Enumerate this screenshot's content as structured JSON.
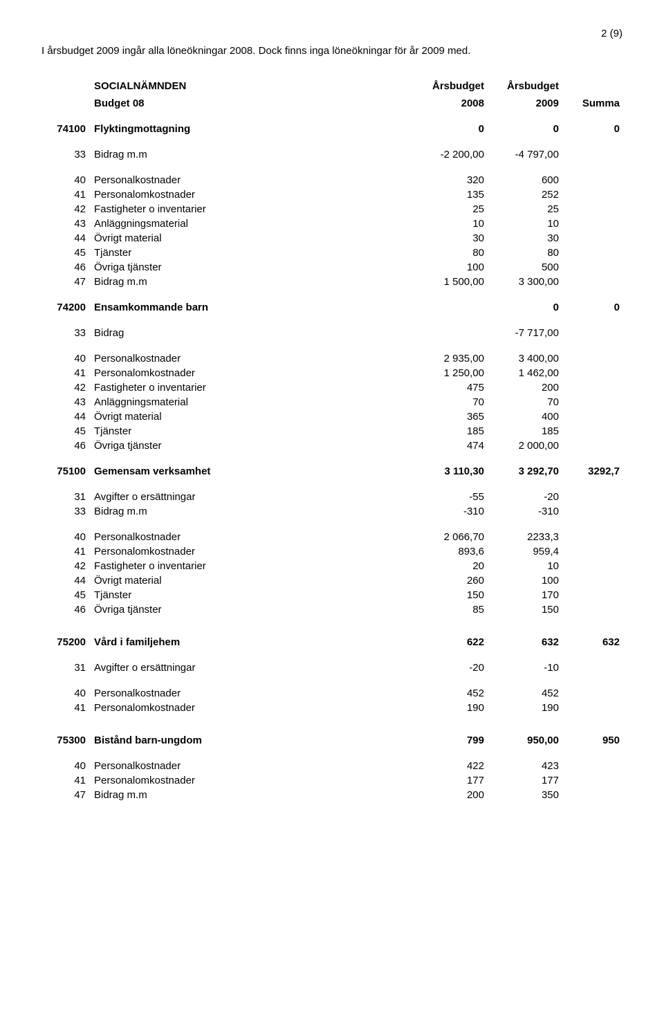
{
  "page_number": "2 (9)",
  "intro": "I årsbudget 2009 ingår alla löneökningar 2008. Dock finns inga löneökningar för år 2009 med.",
  "header": {
    "title": "SOCIALNÄMNDEN",
    "sub1": "Budget 08",
    "col1_top": "Årsbudget",
    "col1_bot": "2008",
    "col2_top": "Årsbudget",
    "col2_bot": "2009",
    "col3": "Summa"
  },
  "rows": [
    {
      "t": "section",
      "code": "74100",
      "label": "Flyktingmottagning",
      "v1": "0",
      "v2": "0",
      "v3": "0"
    },
    {
      "t": "spacer"
    },
    {
      "t": "line",
      "code": "33",
      "label": "Bidrag m.m",
      "v1": "-2 200,00",
      "v2": "-4 797,00"
    },
    {
      "t": "spacer"
    },
    {
      "t": "line",
      "code": "40",
      "label": "Personalkostnader",
      "v1": "320",
      "v2": "600"
    },
    {
      "t": "line",
      "code": "41",
      "label": "Personalomkostnader",
      "v1": "135",
      "v2": "252"
    },
    {
      "t": "line",
      "code": "42",
      "label": "Fastigheter o inventarier",
      "v1": "25",
      "v2": "25"
    },
    {
      "t": "line",
      "code": "43",
      "label": "Anläggningsmaterial",
      "v1": "10",
      "v2": "10"
    },
    {
      "t": "line",
      "code": "44",
      "label": "Övrigt material",
      "v1": "30",
      "v2": "30"
    },
    {
      "t": "line",
      "code": "45",
      "label": "Tjänster",
      "v1": "80",
      "v2": "80"
    },
    {
      "t": "line",
      "code": "46",
      "label": "Övriga tjänster",
      "v1": "100",
      "v2": "500"
    },
    {
      "t": "line",
      "code": "47",
      "label": "Bidrag m.m",
      "v1": "1 500,00",
      "v2": "3 300,00"
    },
    {
      "t": "spacer"
    },
    {
      "t": "section",
      "code": "74200",
      "label": "Ensamkommande barn",
      "v1": "",
      "v2": "0",
      "v3": "0"
    },
    {
      "t": "spacer"
    },
    {
      "t": "line",
      "code": "33",
      "label": "Bidrag",
      "v1": "",
      "v2": "-7 717,00"
    },
    {
      "t": "spacer"
    },
    {
      "t": "line",
      "code": "40",
      "label": "Personalkostnader",
      "v1": "2 935,00",
      "v2": "3 400,00"
    },
    {
      "t": "line",
      "code": "41",
      "label": "Personalomkostnader",
      "v1": "1 250,00",
      "v2": "1 462,00"
    },
    {
      "t": "line",
      "code": "42",
      "label": "Fastigheter o inventarier",
      "v1": "475",
      "v2": "200"
    },
    {
      "t": "line",
      "code": "43",
      "label": "Anläggningsmaterial",
      "v1": "70",
      "v2": "70"
    },
    {
      "t": "line",
      "code": "44",
      "label": "Övrigt material",
      "v1": "365",
      "v2": "400"
    },
    {
      "t": "line",
      "code": "45",
      "label": "Tjänster",
      "v1": "185",
      "v2": "185"
    },
    {
      "t": "line",
      "code": "46",
      "label": "Övriga tjänster",
      "v1": "474",
      "v2": "2 000,00"
    },
    {
      "t": "spacer"
    },
    {
      "t": "section",
      "code": "75100",
      "label": "Gemensam verksamhet",
      "v1": "3 110,30",
      "v2": "3 292,70",
      "v3": "3292,7"
    },
    {
      "t": "spacer"
    },
    {
      "t": "line",
      "code": "31",
      "label": "Avgifter o ersättningar",
      "v1": "-55",
      "v2": "-20"
    },
    {
      "t": "line",
      "code": "33",
      "label": "Bidrag m.m",
      "v1": "-310",
      "v2": "-310"
    },
    {
      "t": "spacer"
    },
    {
      "t": "line",
      "code": "40",
      "label": "Personalkostnader",
      "v1": "2 066,70",
      "v2": "2233,3"
    },
    {
      "t": "line",
      "code": "41",
      "label": "Personalomkostnader",
      "v1": "893,6",
      "v2": "959,4"
    },
    {
      "t": "line",
      "code": "42",
      "label": "Fastigheter o inventarier",
      "v1": "20",
      "v2": "10"
    },
    {
      "t": "line",
      "code": "44",
      "label": "Övrigt material",
      "v1": "260",
      "v2": "100"
    },
    {
      "t": "line",
      "code": "45",
      "label": "Tjänster",
      "v1": "150",
      "v2": "170"
    },
    {
      "t": "line",
      "code": "46",
      "label": "Övriga tjänster",
      "v1": "85",
      "v2": "150"
    },
    {
      "t": "spacer-lg"
    },
    {
      "t": "section",
      "code": "75200",
      "label": "Vård i familjehem",
      "v1": "622",
      "v2": "632",
      "v3": "632"
    },
    {
      "t": "spacer"
    },
    {
      "t": "line",
      "code": "31",
      "label": "Avgifter o ersättningar",
      "v1": "-20",
      "v2": "-10"
    },
    {
      "t": "spacer"
    },
    {
      "t": "line",
      "code": "40",
      "label": "Personalkostnader",
      "v1": "452",
      "v2": "452"
    },
    {
      "t": "line",
      "code": "41",
      "label": "Personalomkostnader",
      "v1": "190",
      "v2": "190"
    },
    {
      "t": "spacer-lg"
    },
    {
      "t": "section",
      "code": "75300",
      "label": "Bistånd barn-ungdom",
      "v1": "799",
      "v2": "950,00",
      "v3": "950"
    },
    {
      "t": "spacer"
    },
    {
      "t": "line",
      "code": "40",
      "label": "Personalkostnader",
      "v1": "422",
      "v2": "423"
    },
    {
      "t": "line",
      "code": "41",
      "label": "Personalomkostnader",
      "v1": "177",
      "v2": "177"
    },
    {
      "t": "line",
      "code": "47",
      "label": "Bidrag m.m",
      "v1": "200",
      "v2": "350"
    }
  ]
}
